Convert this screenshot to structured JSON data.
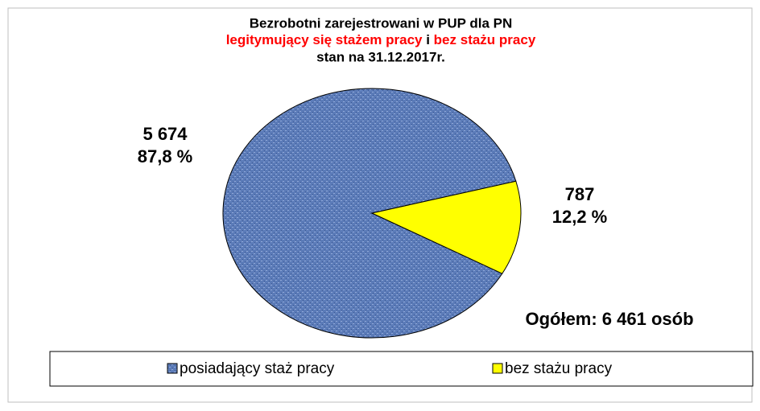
{
  "chart_data": {
    "type": "pie",
    "title": "Bezrobotni zarejestrowani w PUP dla PN",
    "subtitle_parts": [
      {
        "text": "legitymujący się stażem pracy",
        "color": "#ff0000"
      },
      {
        "text": " i ",
        "color": "#000000"
      },
      {
        "text": "bez stażu pracy",
        "color": "#ff0000"
      }
    ],
    "subtitle2": "stan na  31.12.2017r.",
    "categories": [
      "posiadający staż pracy",
      "bez stażu pracy"
    ],
    "values": [
      5674,
      787
    ],
    "value_labels": [
      "5 674",
      "787"
    ],
    "percents": [
      87.8,
      12.2
    ],
    "percent_labels": [
      "87,8 %",
      "12,2 %"
    ],
    "colors": [
      "#5b7bb8",
      "#ffff00"
    ],
    "annotation": "Ogółem:  6 461 osób",
    "legend": "bottom"
  }
}
